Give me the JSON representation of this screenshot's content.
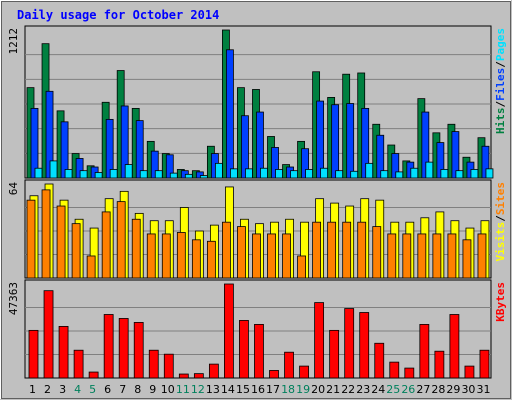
{
  "chart_data": {
    "type": "bar",
    "title": "Daily usage for October 2014",
    "categories": [
      "1",
      "2",
      "3",
      "4",
      "5",
      "6",
      "7",
      "8",
      "9",
      "10",
      "11",
      "12",
      "13",
      "14",
      "15",
      "16",
      "17",
      "18",
      "19",
      "20",
      "21",
      "22",
      "23",
      "24",
      "25",
      "26",
      "27",
      "28",
      "29",
      "30",
      "31"
    ],
    "weekend_days": [
      "4",
      "5",
      "11",
      "12",
      "18",
      "19",
      "25",
      "26"
    ],
    "panels": [
      {
        "id": "hits",
        "ymax_label": "1212",
        "ymax": 1212,
        "series": [
          {
            "name": "Hits",
            "color": "#008040",
            "values": [
              740,
              1100,
              550,
              200,
              100,
              620,
              880,
              570,
              300,
              200,
              70,
              60,
              260,
              1212,
              740,
              725,
              340,
              110,
              300,
              870,
              660,
              850,
              860,
              440,
              270,
              140,
              650,
              370,
              440,
              170,
              330
            ]
          },
          {
            "name": "Files",
            "color": "#0040ff",
            "values": [
              570,
              710,
              460,
              160,
              90,
              480,
              590,
              470,
              220,
              190,
              60,
              50,
              200,
              1050,
              510,
              540,
              250,
              90,
              240,
              630,
              600,
              610,
              570,
              350,
              200,
              130,
              540,
              290,
              380,
              130,
              260
            ]
          },
          {
            "name": "Pages",
            "color": "#00e0ff",
            "values": [
              80,
              140,
              70,
              60,
              45,
              70,
              110,
              60,
              60,
              40,
              30,
              20,
              120,
              75,
              75,
              80,
              70,
              60,
              70,
              80,
              60,
              55,
              120,
              60,
              50,
              80,
              130,
              70,
              60,
              70,
              75
            ]
          }
        ],
        "right_labels": [
          {
            "text": "Hits",
            "color": "#008040"
          },
          {
            "text": "/",
            "color": "#000000"
          },
          {
            "text": "Files",
            "color": "#0040ff"
          },
          {
            "text": "/",
            "color": "#000000"
          },
          {
            "text": "Pages",
            "color": "#00e0ff"
          }
        ]
      },
      {
        "id": "visits",
        "ymax_label": "64",
        "ymax": 64,
        "series": [
          {
            "name": "Visits",
            "color": "#ffff00",
            "values": [
              56,
              64,
              53,
              40,
              34,
              54,
              59,
              44,
              39,
              39,
              48,
              32,
              36,
              62,
              40,
              37,
              38,
              40,
              38,
              54,
              51,
              49,
              54,
              53,
              38,
              38,
              41,
              45,
              39,
              34,
              39
            ]
          },
          {
            "name": "Sites",
            "color": "#ff8000",
            "values": [
              53,
              60,
              49,
              37,
              15,
              45,
              52,
              40,
              30,
              30,
              31,
              26,
              25,
              38,
              35,
              30,
              30,
              30,
              15,
              38,
              38,
              38,
              38,
              35,
              30,
              30,
              30,
              30,
              30,
              26,
              30
            ]
          }
        ],
        "right_labels": [
          {
            "text": "Visits",
            "color": "#ffff00"
          },
          {
            "text": "/",
            "color": "#000000"
          },
          {
            "text": "Sites",
            "color": "#ff8000"
          }
        ]
      },
      {
        "id": "kbytes",
        "ymax_label": "47363",
        "ymax": 47363,
        "series": [
          {
            "name": "KBytes",
            "color": "#ff0000",
            "values": [
              24000,
              44000,
              26000,
              14000,
              3000,
              32000,
              30000,
              28000,
              14000,
              12000,
              2000,
              2200,
              7000,
              47363,
              29000,
              27000,
              3800,
              13000,
              6000,
              38000,
              24000,
              35000,
              33000,
              17500,
              8000,
              5000,
              27000,
              13500,
              32000,
              6000,
              14000
            ]
          }
        ],
        "right_labels": [
          {
            "text": "KBytes",
            "color": "#ff0000"
          }
        ]
      }
    ]
  },
  "colors": {
    "background": "#c0c0c0",
    "title": "#0000ff",
    "weekday_label": "#000080",
    "weekend_label": "#00805c",
    "gridline": "#808080"
  }
}
